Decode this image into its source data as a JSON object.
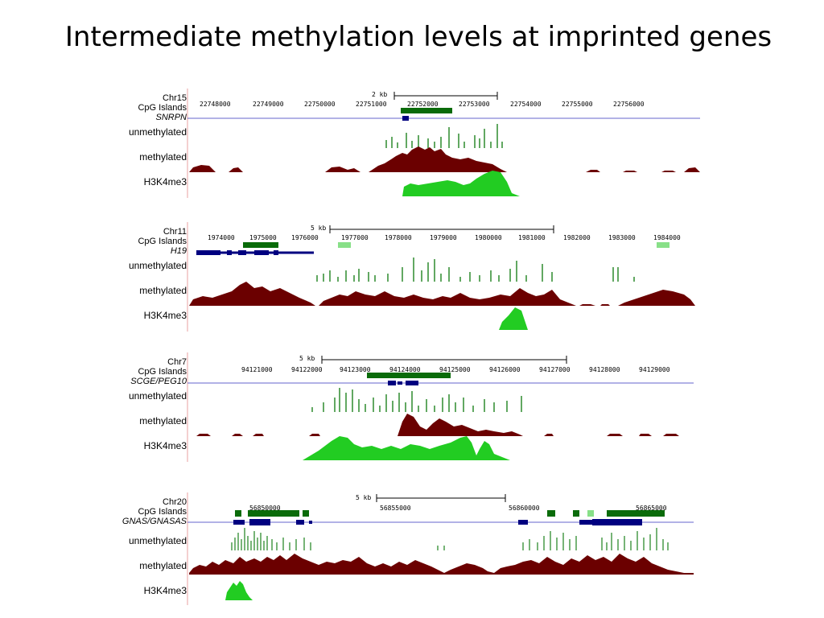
{
  "slide": {
    "title": "Intermediate methylation levels at imprinted genes"
  },
  "colors": {
    "unmethylated": "#2e8b2e",
    "methylated": "#6b0000",
    "h3k4me3": "#22cc22",
    "cpg_dark": "#0a6b0a",
    "cpg_light": "#88e088",
    "gene": "#000080",
    "axis_line": "#6666cc"
  },
  "track_labels": {
    "unmethylated": "unmethylated",
    "methylated": "methylated",
    "h3k4me3": "H3K4me3"
  },
  "panels": [
    {
      "chrom": "Chr15",
      "cpg_label": "CpG Islands",
      "gene": "SNRPN",
      "scale": "2 kb",
      "ticks": [
        "22748000",
        "22749000",
        "22750000",
        "22751000",
        "22752000",
        "22753000",
        "22754000",
        "22755000",
        "22756000"
      ]
    },
    {
      "chrom": "Chr11",
      "cpg_label": "CpG Islands",
      "gene": "H19",
      "scale": "5 kb",
      "ticks": [
        "1974000",
        "1975000",
        "1976000",
        "1977000",
        "1978000",
        "1979000",
        "1980000",
        "1981000",
        "1982000",
        "1983000",
        "1984000"
      ]
    },
    {
      "chrom": "Chr7",
      "cpg_label": "CpG Islands",
      "gene": "SCGE/PEG10",
      "scale": "5 kb",
      "ticks": [
        "94121000",
        "94122000",
        "94123000",
        "94124000",
        "94125000",
        "94126000",
        "94127000",
        "94128000",
        "94129000"
      ]
    },
    {
      "chrom": "Chr20",
      "cpg_label": "CpG Islands",
      "gene": "GNAS/GNASAS",
      "scale": "5 kb",
      "ticks": [
        "56850000",
        "56855000",
        "56860000",
        "56865000"
      ]
    }
  ]
}
